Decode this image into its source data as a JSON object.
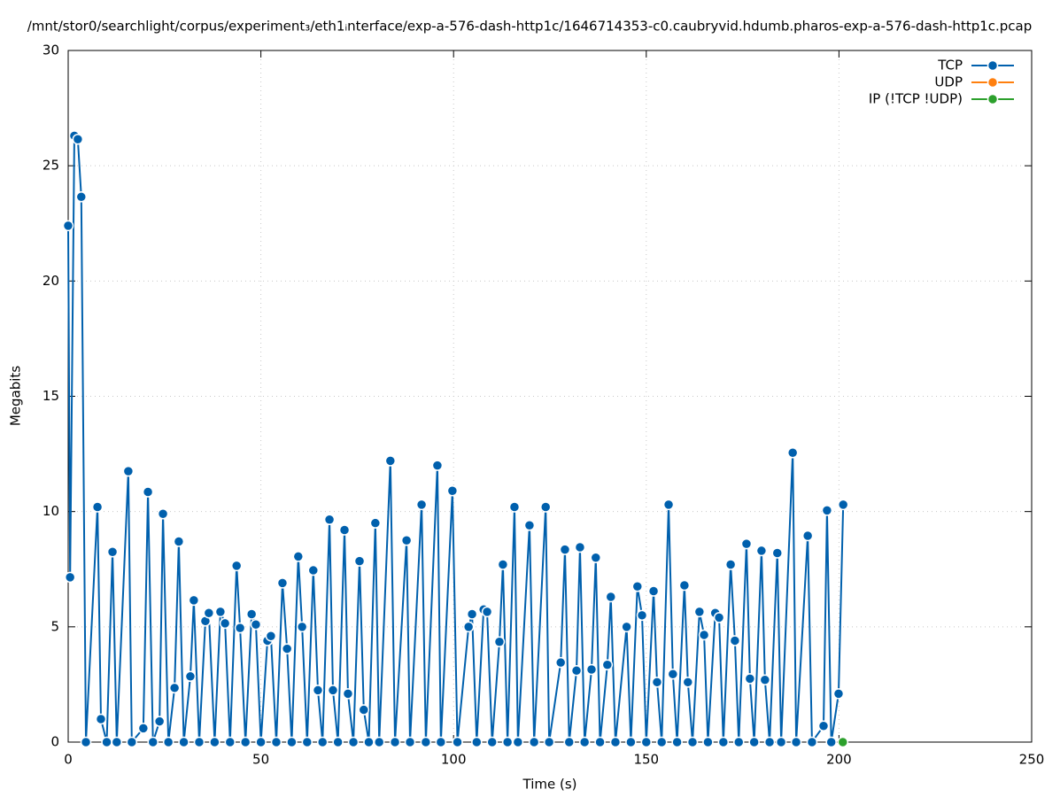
{
  "chart_data": {
    "type": "line",
    "title": "/mnt/stor0/searchlight/corpus/experiment₃/eth1ᵢnterface/exp-a-576-dash-http1c/1646714353-c0.caubryvid.hdumb.pharos-exp-a-576-dash-http1c.pcap",
    "x_label": "Time (s)",
    "y_label": "Megabits",
    "xlim": [
      0,
      250
    ],
    "xticks": [
      0,
      50,
      100,
      150,
      200,
      250
    ],
    "ylim": [
      0,
      30
    ],
    "yticks": [
      0,
      5,
      10,
      15,
      20,
      25,
      30
    ],
    "grid": true,
    "legend": "top-right",
    "series": [
      {
        "name": "TCP",
        "color": "#0060ad",
        "x": [
          0,
          0.5,
          1.6,
          2.5,
          3.4,
          4.6,
          7.6,
          8.5,
          10,
          11.5,
          12.6,
          15.6,
          16.5,
          19.5,
          20.7,
          22,
          23.7,
          24.6,
          26,
          27.6,
          28.7,
          30,
          31.7,
          32.6,
          34,
          35.6,
          36.5,
          38,
          39.5,
          40.7,
          42,
          43.7,
          44.6,
          46,
          47.6,
          48.7,
          50,
          51.7,
          52.6,
          54,
          55.6,
          56.8,
          58,
          59.7,
          60.7,
          62,
          63.6,
          64.8,
          66,
          67.8,
          68.7,
          70,
          71.7,
          72.6,
          74,
          75.6,
          76.7,
          78,
          79.7,
          80.7,
          83.6,
          84.8,
          87.8,
          88.7,
          91.7,
          92.8,
          95.8,
          96.7,
          99.7,
          101,
          103.9,
          104.8,
          106,
          107.8,
          108.7,
          110,
          111.9,
          112.8,
          114,
          115.8,
          116.7,
          119.7,
          120.9,
          123.9,
          124.8,
          127.8,
          128.9,
          130,
          131.9,
          132.8,
          134,
          135.8,
          136.9,
          138,
          139.9,
          140.8,
          142,
          144.9,
          146,
          147.7,
          148.9,
          150,
          151.9,
          152.8,
          154,
          155.8,
          156.9,
          158,
          159.9,
          160.8,
          162,
          163.8,
          165,
          166,
          167.9,
          168.9,
          170,
          171.9,
          173,
          174,
          176,
          176.9,
          178,
          179.9,
          180.8,
          182,
          184,
          185,
          188,
          188.9,
          191.9,
          193,
          196,
          196.9,
          198,
          199.9,
          201.1
        ],
        "values": [
          22.4,
          7.15,
          26.3,
          26.15,
          23.65,
          0,
          10.2,
          1.0,
          0,
          8.25,
          0,
          11.75,
          0,
          0.6,
          10.85,
          0,
          0.9,
          9.9,
          0,
          2.35,
          8.7,
          0,
          2.85,
          6.15,
          0,
          5.25,
          5.6,
          0,
          5.65,
          5.15,
          0,
          7.65,
          4.95,
          0,
          5.55,
          5.1,
          0,
          4.4,
          4.6,
          0,
          6.9,
          4.05,
          0,
          8.05,
          5.0,
          0,
          7.45,
          2.25,
          0,
          9.65,
          2.25,
          0,
          9.2,
          2.1,
          0,
          7.85,
          1.4,
          0,
          9.5,
          0,
          12.2,
          0,
          8.75,
          0,
          10.3,
          0,
          12.0,
          0,
          10.9,
          0,
          5.0,
          5.55,
          0,
          5.75,
          5.65,
          0,
          4.35,
          7.7,
          0,
          10.2,
          0,
          9.4,
          0,
          10.2,
          0,
          3.45,
          8.35,
          0,
          3.1,
          8.45,
          0,
          3.15,
          8.0,
          0,
          3.35,
          6.3,
          0,
          5.0,
          0,
          6.75,
          5.5,
          0,
          6.55,
          2.6,
          0,
          10.3,
          2.95,
          0,
          6.8,
          2.6,
          0,
          5.65,
          4.65,
          0,
          5.6,
          5.4,
          0,
          7.7,
          4.4,
          0,
          8.6,
          2.75,
          0,
          8.3,
          2.7,
          0,
          8.2,
          0,
          12.55,
          0,
          8.95,
          0,
          0.7,
          10.05,
          0,
          2.1,
          10.3
        ]
      },
      {
        "name": "UDP",
        "color": "#ff7f0e",
        "x": [],
        "values": []
      },
      {
        "name": "IP (!TCP  !UDP)",
        "color": "#2ca02c",
        "x": [
          201
        ],
        "values": [
          0
        ]
      }
    ]
  }
}
